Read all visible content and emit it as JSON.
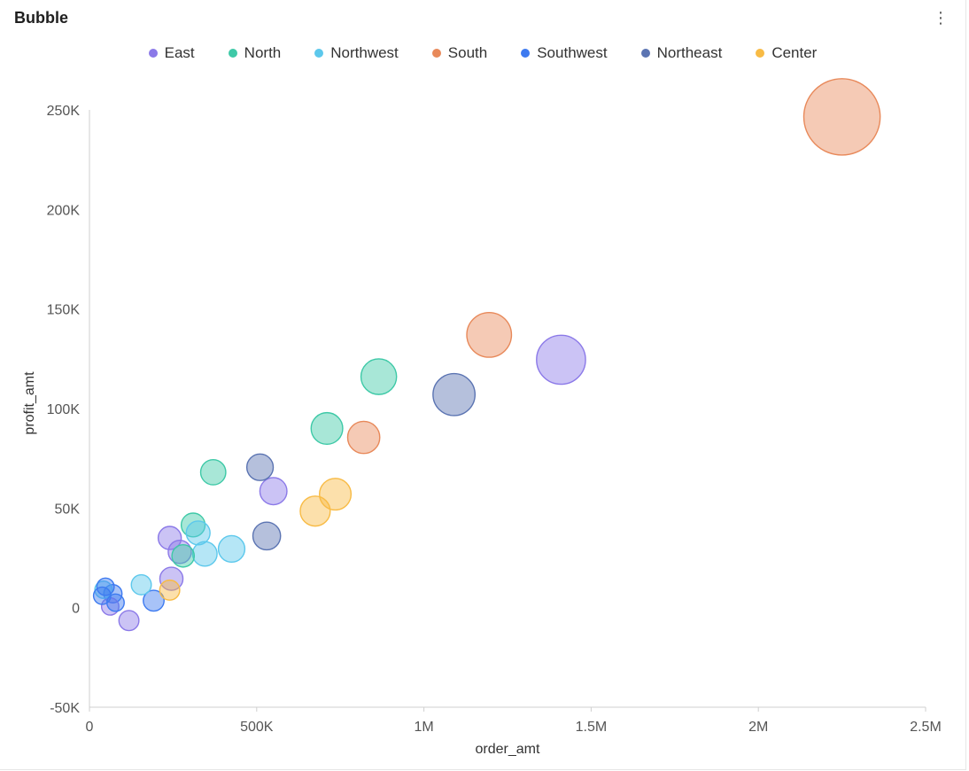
{
  "header": {
    "title": "Bubble",
    "menu_icon": "more-vertical-icon",
    "menu_glyph": "⋮"
  },
  "chart_data": {
    "type": "scatter",
    "variant": "bubble",
    "title": "Bubble",
    "xlabel": "order_amt",
    "ylabel": "profit_amt",
    "xlim": [
      0,
      2500000
    ],
    "ylim": [
      -50000,
      250000
    ],
    "x_ticks": [
      {
        "value": 0,
        "label": "0"
      },
      {
        "value": 500000,
        "label": "500K"
      },
      {
        "value": 1000000,
        "label": "1M"
      },
      {
        "value": 1500000,
        "label": "1.5M"
      },
      {
        "value": 2000000,
        "label": "2M"
      },
      {
        "value": 2500000,
        "label": "2.5M"
      }
    ],
    "y_ticks": [
      {
        "value": -50000,
        "label": "-50K"
      },
      {
        "value": 0,
        "label": "0"
      },
      {
        "value": 50000,
        "label": "50K"
      },
      {
        "value": 100000,
        "label": "100K"
      },
      {
        "value": 150000,
        "label": "150K"
      },
      {
        "value": 200000,
        "label": "200K"
      },
      {
        "value": 250000,
        "label": "250K"
      }
    ],
    "grid": false,
    "legend_position": "top-center",
    "series": [
      {
        "name": "East",
        "color": "#8b79e8",
        "points": [
          {
            "x": 1410000,
            "y": 124500,
            "size": 7.2
          },
          {
            "x": 550000,
            "y": 58500,
            "size": 2.2
          },
          {
            "x": 240000,
            "y": 35000,
            "size": 1.6
          },
          {
            "x": 270000,
            "y": 28000,
            "size": 1.6
          },
          {
            "x": 245000,
            "y": 14500,
            "size": 1.6
          },
          {
            "x": 118000,
            "y": -6500,
            "size": 1.2
          },
          {
            "x": 62000,
            "y": 600,
            "size": 0.9
          }
        ]
      },
      {
        "name": "North",
        "color": "#3ec9a7",
        "points": [
          {
            "x": 865000,
            "y": 116000,
            "size": 3.8
          },
          {
            "x": 710000,
            "y": 90000,
            "size": 3.0
          },
          {
            "x": 370000,
            "y": 68000,
            "size": 1.9
          },
          {
            "x": 310000,
            "y": 41500,
            "size": 1.7
          },
          {
            "x": 280000,
            "y": 26000,
            "size": 1.5
          }
        ]
      },
      {
        "name": "Northwest",
        "color": "#5cc8ec",
        "points": [
          {
            "x": 425000,
            "y": 29500,
            "size": 2.1
          },
          {
            "x": 345000,
            "y": 27000,
            "size": 1.8
          },
          {
            "x": 325000,
            "y": 37500,
            "size": 1.7
          },
          {
            "x": 155000,
            "y": 11500,
            "size": 1.2
          },
          {
            "x": 42000,
            "y": 9000,
            "size": 0.9
          }
        ]
      },
      {
        "name": "South",
        "color": "#e8895a",
        "points": [
          {
            "x": 2250000,
            "y": 246500,
            "size": 17.5
          },
          {
            "x": 1195000,
            "y": 137000,
            "size": 6.0
          },
          {
            "x": 820000,
            "y": 85500,
            "size": 3.1
          }
        ]
      },
      {
        "name": "Southwest",
        "color": "#3d7af0",
        "points": [
          {
            "x": 192000,
            "y": 3500,
            "size": 1.3
          },
          {
            "x": 70000,
            "y": 7000,
            "size": 1.0
          },
          {
            "x": 48000,
            "y": 10500,
            "size": 0.9
          },
          {
            "x": 38000,
            "y": 6000,
            "size": 0.9
          },
          {
            "x": 78000,
            "y": 2500,
            "size": 0.9
          }
        ]
      },
      {
        "name": "Northeast",
        "color": "#5b74b2",
        "points": [
          {
            "x": 1090000,
            "y": 107000,
            "size": 5.3
          },
          {
            "x": 510000,
            "y": 70500,
            "size": 2.1
          },
          {
            "x": 530000,
            "y": 36000,
            "size": 2.3
          }
        ]
      },
      {
        "name": "Center",
        "color": "#f8bb45",
        "points": [
          {
            "x": 735000,
            "y": 57000,
            "size": 3.0
          },
          {
            "x": 675000,
            "y": 48500,
            "size": 2.7
          },
          {
            "x": 240000,
            "y": 8800,
            "size": 1.2
          }
        ]
      }
    ]
  }
}
